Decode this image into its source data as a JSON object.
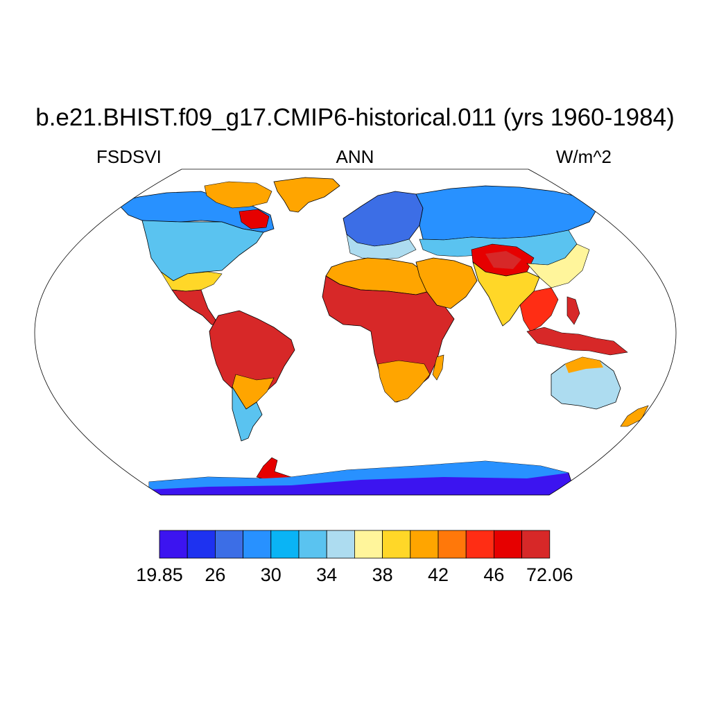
{
  "title": "b.e21.BHIST.f09_g17.CMIP6-historical.011 (yrs 1960-1984)",
  "subtitle_left": "FSDSVI",
  "subtitle_center": "ANN",
  "subtitle_right": "W/m^2",
  "colorbar": {
    "colors": [
      "#3c14f0",
      "#1e32f0",
      "#3c6ee6",
      "#2891ff",
      "#0ab4f5",
      "#5ac3f0",
      "#addcf0",
      "#fff59b",
      "#ffd728",
      "#ffa500",
      "#ff780a",
      "#ff2d14",
      "#e60000",
      "#d72828"
    ],
    "labels": [
      "19.85",
      "26",
      "30",
      "34",
      "38",
      "42",
      "46",
      "72.06"
    ]
  },
  "map": {
    "projection": "robinson",
    "ocean_color": "#ffffff",
    "regions": [
      {
        "name": "north-america-arctic",
        "color": "#2891ff"
      },
      {
        "name": "north-america-mid",
        "color": "#5ac3f0"
      },
      {
        "name": "greenland",
        "color": "#ffa500"
      },
      {
        "name": "central-america",
        "color": "#d72828"
      },
      {
        "name": "south-america",
        "color": "#d72828"
      },
      {
        "name": "patagonia",
        "color": "#5ac3f0"
      },
      {
        "name": "europe",
        "color": "#3c6ee6"
      },
      {
        "name": "northern-asia",
        "color": "#2891ff"
      },
      {
        "name": "africa",
        "color": "#d72828"
      },
      {
        "name": "middle-east",
        "color": "#ffa500"
      },
      {
        "name": "tibet",
        "color": "#e60000"
      },
      {
        "name": "south-asia",
        "color": "#ffd728"
      },
      {
        "name": "maritime-continent",
        "color": "#d72828"
      },
      {
        "name": "australia",
        "color": "#addcf0"
      },
      {
        "name": "antarctica",
        "color": "#3c14f0"
      }
    ]
  }
}
